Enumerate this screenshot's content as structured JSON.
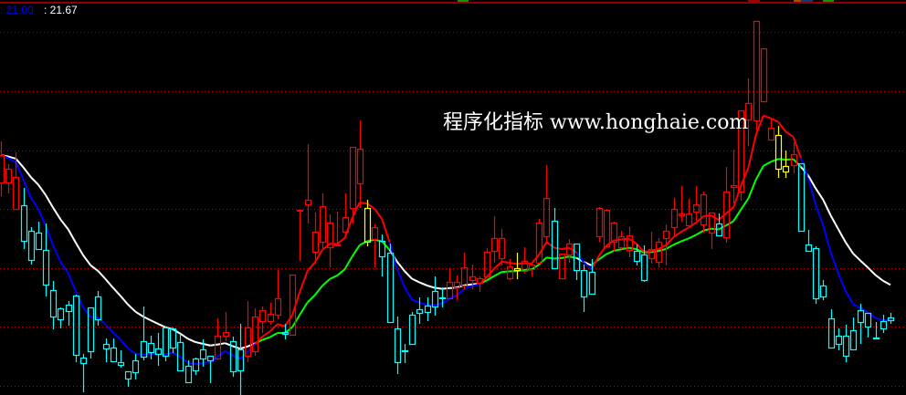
{
  "header": {
    "value1": ": 21.00",
    "value2": ": 21.67"
  },
  "watermark": "程序化指标 www.honghaie.com",
  "colors": {
    "background": "#000000",
    "grid": "#c00000",
    "up": "#ff0000",
    "down": "#00ffff",
    "signal": "#ffff00",
    "fast_up": "#ff0000",
    "slow_up": "#00ff00",
    "fast_down": "#0000ff",
    "slow_down": "#ffffff",
    "value1": "#0000ff",
    "value2": "#ffffff"
  },
  "chart_data": {
    "type": "candlestick",
    "title": "",
    "ylim": [
      13.34,
      22.0
    ],
    "grid": true,
    "grid_levels": [
      21.3,
      20.0,
      18.7,
      17.42,
      16.12,
      14.84,
      13.54
    ],
    "overlays": [
      "moving-average-fast",
      "moving-average-slow"
    ],
    "signal_candles": [
      49,
      69,
      104,
      105
    ],
    "ohlc": [
      [
        18.0,
        18.9,
        17.7,
        18.6
      ],
      [
        18.0,
        18.4,
        17.76,
        18.3
      ],
      [
        17.42,
        18.66,
        17.42,
        18.12
      ],
      [
        17.5,
        17.88,
        16.54,
        16.72
      ],
      [
        16.94,
        17.02,
        16.2,
        16.3
      ],
      [
        16.9,
        17.14,
        16.52,
        16.54
      ],
      [
        16.52,
        17.1,
        15.5,
        15.76
      ],
      [
        15.64,
        15.84,
        14.78,
        15.06
      ],
      [
        15.24,
        15.26,
        14.8,
        15.0
      ],
      [
        15.32,
        15.4,
        14.86,
        15.18
      ],
      [
        15.52,
        15.54,
        14.06,
        14.22
      ],
      [
        14.16,
        14.24,
        13.4,
        14.04
      ],
      [
        15.26,
        15.26,
        14.14,
        14.3
      ],
      [
        15.5,
        15.62,
        14.86,
        15.0
      ],
      [
        14.46,
        14.58,
        14.06,
        14.36
      ],
      [
        14.38,
        14.58,
        14.06,
        14.08
      ],
      [
        14.06,
        14.32,
        13.94,
        14.0
      ],
      [
        13.86,
        13.86,
        13.52,
        13.7
      ],
      [
        14.1,
        14.24,
        13.68,
        13.84
      ],
      [
        14.52,
        15.28,
        14.1,
        14.18
      ],
      [
        14.48,
        14.64,
        14.12,
        14.28
      ],
      [
        14.36,
        14.7,
        13.98,
        14.24
      ],
      [
        14.82,
        14.84,
        14.08,
        14.2
      ],
      [
        14.8,
        14.82,
        14.26,
        14.38
      ],
      [
        14.5,
        14.68,
        13.88,
        13.88
      ],
      [
        13.98,
        14.1,
        13.62,
        13.62
      ],
      [
        14.14,
        14.16,
        13.78,
        13.88
      ],
      [
        14.34,
        14.56,
        13.96,
        14.14
      ],
      [
        14.2,
        14.2,
        13.6,
        14.1
      ],
      [
        14.14,
        15.02,
        14.12,
        14.64
      ],
      [
        14.64,
        15.16,
        14.52,
        14.72
      ],
      [
        14.52,
        14.62,
        13.74,
        13.86
      ],
      [
        14.34,
        14.9,
        13.34,
        13.88
      ],
      [
        14.2,
        15.4,
        14.06,
        14.82
      ],
      [
        14.3,
        15.24,
        14.2,
        15.06
      ],
      [
        14.96,
        15.28,
        14.7,
        15.2
      ],
      [
        14.96,
        15.36,
        14.88,
        15.12
      ],
      [
        15.1,
        16.08,
        15.0,
        15.46
      ],
      [
        14.72,
        14.9,
        14.56,
        14.68
      ],
      [
        14.66,
        15.98,
        14.66,
        15.98
      ],
      [
        17.38,
        17.4,
        16.28,
        17.4
      ],
      [
        17.52,
        18.84,
        17.1,
        17.62
      ],
      [
        16.48,
        17.34,
        16.22,
        16.92
      ],
      [
        16.7,
        17.76,
        16.54,
        17.48
      ],
      [
        16.58,
        17.3,
        16.14,
        17.12
      ],
      [
        16.62,
        17.36,
        16.6,
        16.64
      ],
      [
        16.92,
        17.76,
        16.84,
        17.24
      ],
      [
        17.44,
        18.78,
        17.1,
        18.78
      ],
      [
        17.98,
        19.36,
        17.44,
        18.74
      ],
      [
        16.7,
        17.62,
        16.6,
        17.44
      ],
      [
        16.76,
        17.08,
        16.14,
        17.02
      ],
      [
        16.72,
        16.86,
        15.94,
        16.38
      ],
      [
        16.46,
        16.66,
        14.94,
        14.94
      ],
      [
        14.8,
        15.06,
        13.8,
        14.06
      ],
      [
        14.32,
        14.46,
        14.04,
        14.3
      ],
      [
        15.1,
        15.16,
        14.44,
        14.46
      ],
      [
        15.22,
        15.48,
        14.9,
        15.14
      ],
      [
        15.3,
        15.48,
        14.96,
        15.16
      ],
      [
        15.62,
        15.94,
        15.08,
        15.28
      ],
      [
        15.48,
        15.7,
        15.26,
        15.46
      ],
      [
        15.46,
        16.12,
        15.44,
        15.82
      ],
      [
        15.7,
        15.96,
        15.42,
        15.82
      ],
      [
        15.74,
        16.46,
        15.66,
        16.14
      ],
      [
        15.86,
        16.2,
        15.66,
        15.94
      ],
      [
        15.8,
        15.94,
        15.6,
        15.9
      ],
      [
        15.94,
        16.56,
        15.94,
        16.48
      ],
      [
        16.5,
        17.26,
        16.24,
        16.78
      ],
      [
        16.34,
        16.98,
        16.18,
        16.78
      ],
      [
        15.9,
        16.32,
        15.86,
        16.16
      ],
      [
        16.08,
        16.46,
        15.88,
        16.12
      ],
      [
        16.06,
        16.58,
        16.0,
        16.28
      ],
      [
        16.1,
        16.26,
        15.94,
        16.2
      ],
      [
        16.24,
        17.2,
        16.24,
        17.12
      ],
      [
        16.82,
        18.38,
        16.64,
        17.66
      ],
      [
        17.16,
        17.44,
        16.12,
        16.12
      ],
      [
        15.9,
        16.44,
        15.9,
        16.44
      ],
      [
        16.42,
        16.76,
        16.24,
        16.66
      ],
      [
        16.66,
        16.66,
        15.86,
        16.08
      ],
      [
        16.08,
        16.2,
        15.16,
        15.5
      ],
      [
        16.04,
        16.32,
        15.56,
        15.56
      ],
      [
        16.82,
        17.46,
        16.7,
        17.44
      ],
      [
        16.6,
        17.42,
        16.58,
        17.4
      ],
      [
        16.7,
        17.14,
        16.48,
        17.12
      ],
      [
        16.58,
        16.94,
        16.54,
        16.82
      ],
      [
        16.52,
        17.02,
        16.36,
        16.84
      ],
      [
        16.5,
        16.64,
        16.18,
        16.28
      ],
      [
        16.42,
        16.62,
        15.82,
        15.86
      ],
      [
        16.34,
        16.92,
        16.22,
        16.54
      ],
      [
        16.26,
        16.78,
        16.14,
        16.7
      ],
      [
        16.78,
        17.08,
        16.18,
        16.94
      ],
      [
        17.02,
        17.66,
        16.8,
        17.42
      ],
      [
        17.28,
        17.92,
        17.14,
        17.32
      ],
      [
        17.06,
        17.64,
        17.06,
        17.32
      ],
      [
        17.36,
        17.92,
        17.16,
        17.52
      ],
      [
        17.08,
        17.8,
        16.9,
        17.74
      ],
      [
        16.9,
        17.34,
        16.54,
        17.34
      ],
      [
        17.1,
        17.32,
        16.82,
        16.84
      ],
      [
        16.8,
        18.34,
        16.68,
        17.8
      ],
      [
        17.9,
        18.72,
        17.54,
        17.94
      ],
      [
        17.8,
        19.58,
        17.6,
        19.58
      ],
      [
        19.38,
        20.28,
        18.8,
        19.74
      ],
      [
        19.36,
        21.54,
        19.14,
        21.54
      ],
      [
        19.78,
        20.94,
        19.76,
        20.94
      ],
      [
        18.94,
        19.4,
        18.94,
        19.2
      ],
      [
        18.3,
        19.24,
        18.1,
        19.04
      ],
      [
        18.24,
        18.7,
        18.1,
        18.36
      ],
      [
        18.38,
        18.88,
        18.2,
        18.62
      ],
      [
        18.42,
        18.42,
        16.94,
        16.94
      ],
      [
        16.64,
        16.96,
        16.48,
        16.5
      ],
      [
        16.56,
        16.6,
        15.34,
        15.46
      ],
      [
        15.74,
        15.86,
        15.42,
        15.5
      ],
      [
        15.02,
        15.22,
        14.38,
        14.38
      ],
      [
        14.64,
        14.8,
        14.32,
        14.46
      ],
      [
        14.64,
        14.88,
        14.06,
        14.2
      ],
      [
        14.76,
        15.04,
        14.34,
        14.34
      ],
      [
        15.2,
        15.34,
        14.46,
        14.94
      ],
      [
        15.14,
        15.14,
        14.6,
        14.84
      ],
      [
        14.6,
        14.94,
        14.58,
        14.58
      ],
      [
        14.96,
        15.1,
        14.7,
        14.8
      ],
      [
        15.04,
        15.14,
        14.9,
        14.98
      ]
    ]
  }
}
